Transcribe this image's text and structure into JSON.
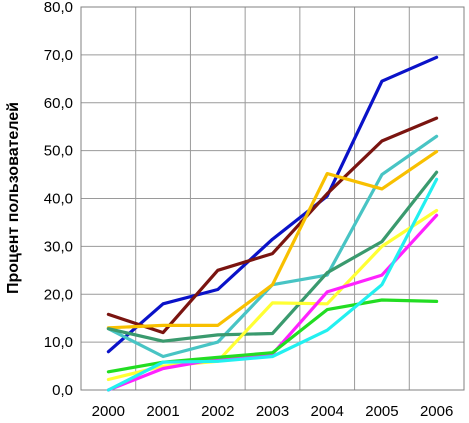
{
  "chart_data": {
    "type": "line",
    "title": "",
    "xlabel": "",
    "ylabel": "Процент пользователей",
    "x": [
      "2000",
      "2001",
      "2002",
      "2003",
      "2004",
      "2005",
      "2006"
    ],
    "y_ticks": [
      "0,0",
      "10,0",
      "20,0",
      "30,0",
      "40,0",
      "50,0",
      "60,0",
      "70,0",
      "80,0"
    ],
    "ylim": [
      0,
      80
    ],
    "grid": true,
    "legend": "none",
    "series": [
      {
        "color": "#0a12c8",
        "values": [
          8.0,
          18.0,
          21.0,
          31.5,
          40.5,
          64.5,
          69.5
        ]
      },
      {
        "color": "#7a1410",
        "values": [
          15.8,
          12.0,
          25.0,
          28.5,
          41.0,
          52.0,
          56.8
        ]
      },
      {
        "color": "#48c4c4",
        "values": [
          12.8,
          7.0,
          10.0,
          22.0,
          24.0,
          45.0,
          53.0
        ]
      },
      {
        "color": "#f8c000",
        "values": [
          13.0,
          13.5,
          13.5,
          22.0,
          45.2,
          42.0,
          49.8
        ]
      },
      {
        "color": "#3a9a6e",
        "values": [
          12.8,
          10.2,
          11.5,
          11.8,
          24.5,
          31.0,
          45.5
        ]
      },
      {
        "color": "#ffff33",
        "values": [
          2.2,
          5.0,
          6.0,
          18.2,
          18.0,
          30.0,
          37.5
        ]
      },
      {
        "color": "#ff22ff",
        "values": [
          0.0,
          4.5,
          6.5,
          7.5,
          20.5,
          24.0,
          36.5
        ]
      },
      {
        "color": "#22dd22",
        "values": [
          3.8,
          5.8,
          6.8,
          7.8,
          16.8,
          18.8,
          18.5
        ]
      },
      {
        "color": "#22f0f0",
        "values": [
          0.0,
          5.8,
          6.0,
          7.0,
          12.5,
          22.0,
          44.0
        ]
      }
    ]
  }
}
